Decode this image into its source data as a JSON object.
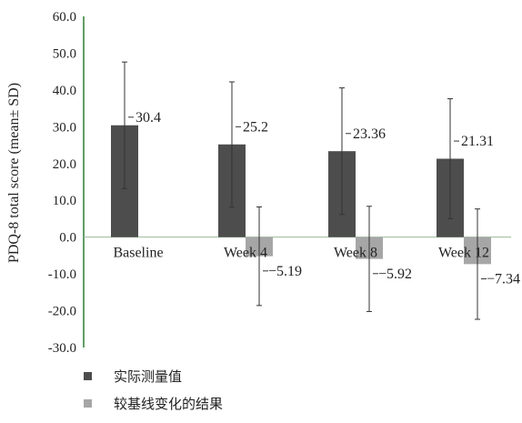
{
  "chart_data": {
    "type": "bar",
    "title": "",
    "xlabel": "",
    "ylabel": "PDQ-8 total score (mean± SD)",
    "ylim": [
      -30.0,
      60.0
    ],
    "yticks": [
      "60.0",
      "50.0",
      "40.0",
      "30.0",
      "20.0",
      "10.0",
      "0.0",
      "-10.0",
      "-20.0",
      "-30.0"
    ],
    "categories": [
      "Baseline",
      "Week 4",
      "Week 8",
      "Week 12"
    ],
    "series": [
      {
        "name": "实际测量值",
        "color": "#4d4d4d",
        "values": [
          30.4,
          25.2,
          23.36,
          21.31
        ],
        "labels": [
          "30.4",
          "25.2",
          "23.36",
          "21.31"
        ],
        "sd": [
          17.2,
          17.0,
          17.2,
          16.3
        ]
      },
      {
        "name": "较基线变化的结果",
        "color": "#a6a6a6",
        "values": [
          null,
          -5.19,
          -5.92,
          -7.34
        ],
        "labels": [
          "",
          "−5.19",
          "−5.92",
          "−7.34"
        ],
        "sd": [
          null,
          13.4,
          14.3,
          15.0
        ]
      }
    ],
    "grid": false,
    "legend_position": "bottom-left"
  }
}
